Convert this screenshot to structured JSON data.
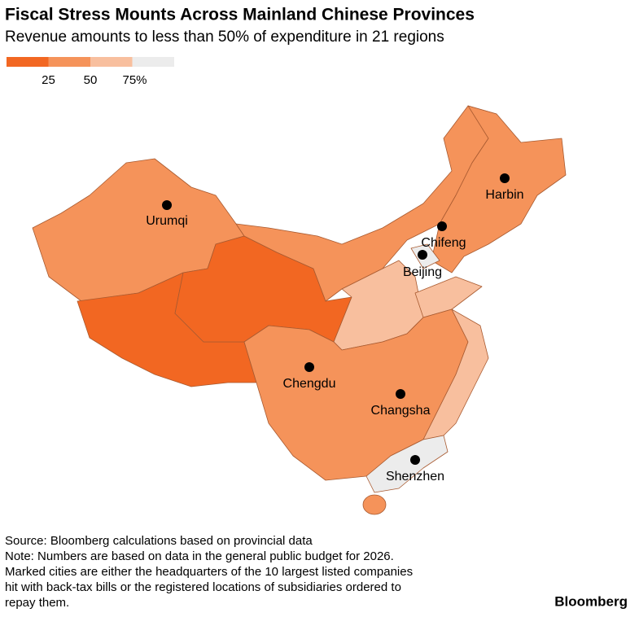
{
  "header": {
    "title": "Fiscal Stress Mounts Across Mainland Chinese Provinces",
    "subtitle": "Revenue amounts to less than 50% of expenditure in 21 regions"
  },
  "legend": {
    "colors": [
      "#f26722",
      "#f5935a",
      "#f8bf9e",
      "#ececec"
    ],
    "range": [
      0,
      100
    ],
    "ticks": [
      25,
      50,
      {
        "value": 75,
        "label": "75%"
      }
    ]
  },
  "cities": [
    "Urumqi",
    "Harbin",
    "Chifeng",
    "Beijing",
    "Chengdu",
    "Changsha",
    "Shenzhen"
  ],
  "footer": {
    "source": "Source: Bloomberg calculations based on provincial data",
    "note": [
      "Note: Numbers are based on data in the general public budget for 2026.",
      "Marked cities are either the headquarters of the 10 largest listed companies",
      "hit with back-tax bills or the registered locations of subsidiaries ordered to",
      "repay them."
    ],
    "brand": "Bloomberg"
  }
}
